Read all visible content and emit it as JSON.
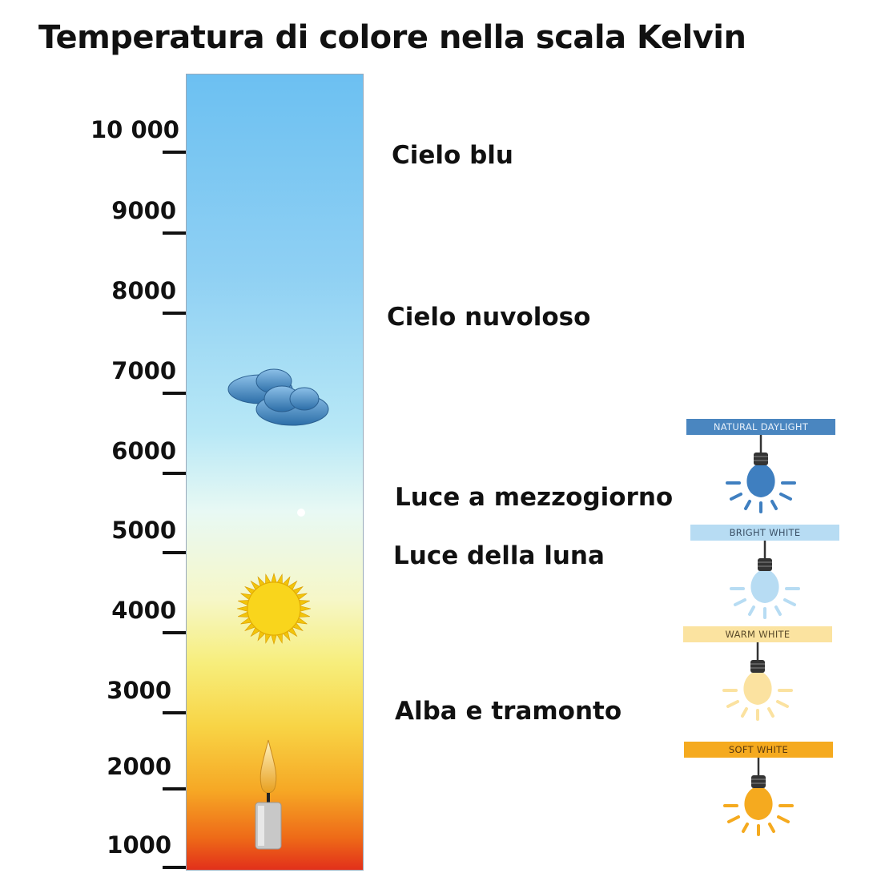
{
  "title": "Temperatura di colore nella scala Kelvin",
  "scale": {
    "ticks": [
      "10 000",
      "9000",
      "8000",
      "7000",
      "6000",
      "5000",
      "4000",
      "3000",
      "2000",
      "1000"
    ]
  },
  "descriptions": [
    "Cielo blu",
    "Cielo nuvoloso",
    "Luce a mezzogiorno",
    "Luce della luna",
    "Alba e tramonto"
  ],
  "icons": [
    "cloud-icon",
    "sun-icon",
    "candle-icon"
  ],
  "bulbs": [
    {
      "label": "NATURAL DAYLIGHT",
      "band": "#4a86c0",
      "text": "#e6f0fa",
      "bulb": "#3f7fc0"
    },
    {
      "label": "BRIGHT WHITE",
      "band": "#b7dcf3",
      "text": "#3a5066",
      "bulb": "#b7dcf3"
    },
    {
      "label": "WARM WHITE",
      "band": "#fbe3a0",
      "text": "#5a4a2a",
      "bulb": "#fbe2a0"
    },
    {
      "label": "SOFT WHITE",
      "band": "#f5aa1f",
      "text": "#5a3a10",
      "bulb": "#f5aa1f"
    }
  ]
}
